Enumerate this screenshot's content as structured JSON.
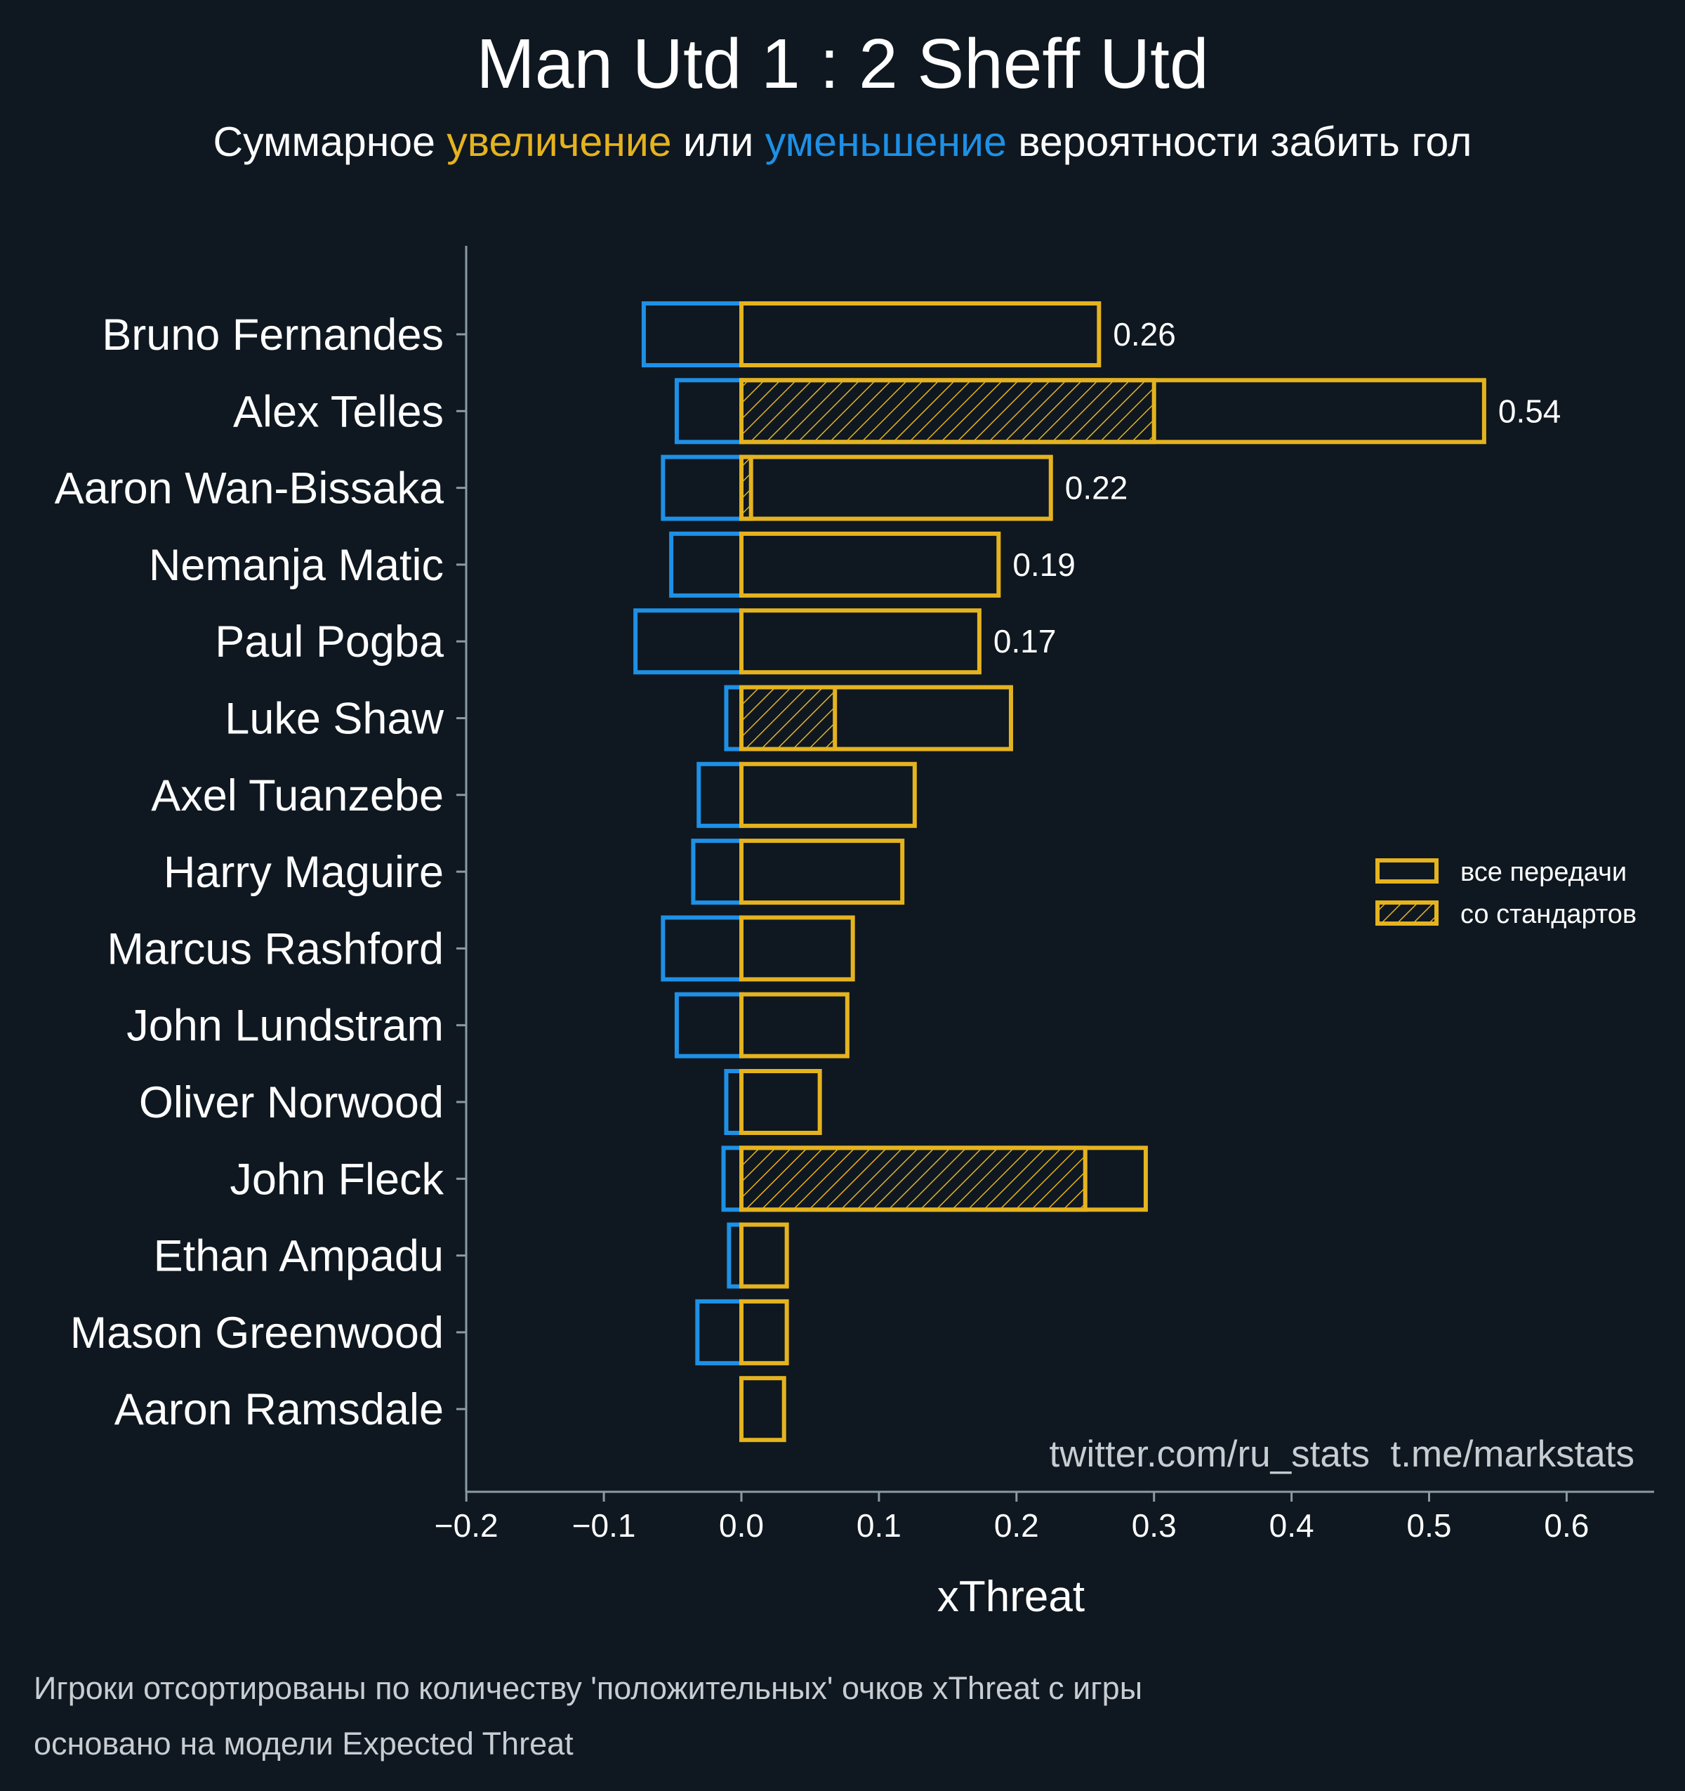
{
  "chart_data": {
    "type": "bar",
    "orientation": "horizontal",
    "title": "Man Utd 1 : 2 Sheff Utd",
    "subtitle": {
      "part1": "Суммарное ",
      "positive_word": "увеличение",
      "part2": " или ",
      "negative_word": "уменьшение",
      "part3": " вероятности забить гол"
    },
    "xlabel": "xThreat",
    "xlim": [
      -0.2,
      0.66
    ],
    "xticks": [
      {
        "value": -0.2,
        "label": "−0.2"
      },
      {
        "value": -0.1,
        "label": "−0.1"
      },
      {
        "value": 0.0,
        "label": "0.0"
      },
      {
        "value": 0.1,
        "label": "0.1"
      },
      {
        "value": 0.2,
        "label": "0.2"
      },
      {
        "value": 0.3,
        "label": "0.3"
      },
      {
        "value": 0.4,
        "label": "0.4"
      },
      {
        "value": 0.5,
        "label": "0.5"
      },
      {
        "value": 0.6,
        "label": "0.6"
      }
    ],
    "players": [
      {
        "name": "Bruno Fernandes",
        "negative": -0.071,
        "positive": 0.26,
        "set_piece": 0.0,
        "label": "0.26"
      },
      {
        "name": "Alex Telles",
        "negative": -0.047,
        "positive": 0.54,
        "set_piece": 0.3,
        "label": "0.54"
      },
      {
        "name": "Aaron Wan-Bissaka",
        "negative": -0.057,
        "positive": 0.225,
        "set_piece": 0.007,
        "label": "0.22"
      },
      {
        "name": "Nemanja Matic",
        "negative": -0.051,
        "positive": 0.187,
        "set_piece": 0.0,
        "label": "0.19"
      },
      {
        "name": "Paul Pogba",
        "negative": -0.077,
        "positive": 0.173,
        "set_piece": 0.0,
        "label": "0.17"
      },
      {
        "name": "Luke Shaw",
        "negative": -0.011,
        "positive": 0.196,
        "set_piece": 0.068,
        "label": ""
      },
      {
        "name": "Axel Tuanzebe",
        "negative": -0.031,
        "positive": 0.126,
        "set_piece": 0.0,
        "label": ""
      },
      {
        "name": "Harry Maguire",
        "negative": -0.035,
        "positive": 0.117,
        "set_piece": 0.0,
        "label": ""
      },
      {
        "name": "Marcus Rashford",
        "negative": -0.057,
        "positive": 0.081,
        "set_piece": 0.0,
        "label": ""
      },
      {
        "name": "John Lundstram",
        "negative": -0.047,
        "positive": 0.077,
        "set_piece": 0.0,
        "label": ""
      },
      {
        "name": "Oliver Norwood",
        "negative": -0.011,
        "positive": 0.057,
        "set_piece": 0.0,
        "label": ""
      },
      {
        "name": "John Fleck",
        "negative": -0.013,
        "positive": 0.294,
        "set_piece": 0.25,
        "label": ""
      },
      {
        "name": "Ethan Ampadu",
        "negative": -0.009,
        "positive": 0.033,
        "set_piece": 0.0,
        "label": ""
      },
      {
        "name": "Mason Greenwood",
        "negative": -0.032,
        "positive": 0.033,
        "set_piece": 0.0,
        "label": ""
      },
      {
        "name": "Aaron Ramsdale",
        "negative": 0.0,
        "positive": 0.031,
        "set_piece": 0.0,
        "label": ""
      }
    ],
    "legend": {
      "placement": "right",
      "items": [
        {
          "label": "все передачи",
          "style": "outline"
        },
        {
          "label": "со стандартов",
          "style": "hatched"
        }
      ]
    },
    "watermark": "twitter.com/ru_stats  t.me/markstats",
    "footnotes": [
      "Игроки отсортированы по количеству 'положительных' очков xThreat с игры",
      "основано на модели Expected Threat"
    ],
    "colors": {
      "background": "#0f1820",
      "positive": "#e5b320",
      "negative": "#1e90e6",
      "axis": "#8a9aa6",
      "text": "#ffffff",
      "muted_text": "#c8cdd2"
    }
  }
}
